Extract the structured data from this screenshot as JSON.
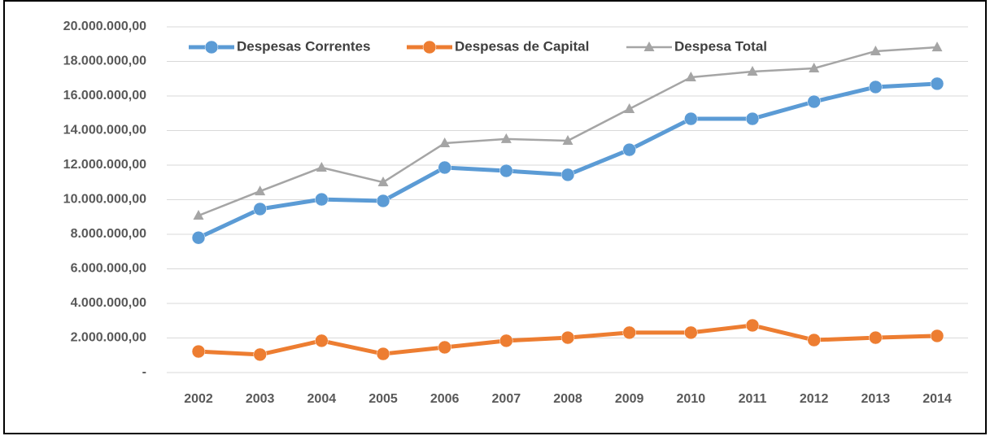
{
  "chart_data": {
    "type": "line",
    "categories": [
      "2002",
      "2003",
      "2004",
      "2005",
      "2006",
      "2007",
      "2008",
      "2009",
      "2010",
      "2011",
      "2012",
      "2013",
      "2014"
    ],
    "series": [
      {
        "name": "Despesas Correntes",
        "color": "#5b9bd5",
        "marker": "circle",
        "values": [
          7800000,
          9460000,
          10020000,
          9930000,
          11860000,
          11670000,
          11440000,
          12890000,
          14680000,
          14680000,
          15670000,
          16520000,
          16710000
        ]
      },
      {
        "name": "Despesas de Capital",
        "color": "#ed7d31",
        "marker": "circle",
        "values": [
          1220000,
          1040000,
          1840000,
          1080000,
          1460000,
          1840000,
          2020000,
          2310000,
          2310000,
          2730000,
          1880000,
          2020000,
          2120000
        ]
      },
      {
        "name": "Despesa Total",
        "color": "#a5a5a5",
        "marker": "triangle",
        "values": [
          9080000,
          10490000,
          11860000,
          11010000,
          13270000,
          13510000,
          13410000,
          15250000,
          17080000,
          17410000,
          17600000,
          18590000,
          18820000
        ]
      }
    ],
    "ylim": [
      0,
      20000000
    ],
    "yticks": [
      {
        "value": 0,
        "label": "-"
      },
      {
        "value": 2000000,
        "label": "2.000.000,00"
      },
      {
        "value": 4000000,
        "label": "4.000.000,00"
      },
      {
        "value": 6000000,
        "label": "6.000.000,00"
      },
      {
        "value": 8000000,
        "label": "8.000.000,00"
      },
      {
        "value": 10000000,
        "label": "10.000.000,00"
      },
      {
        "value": 12000000,
        "label": "12.000.000,00"
      },
      {
        "value": 14000000,
        "label": "14.000.000,00"
      },
      {
        "value": 16000000,
        "label": "16.000.000,00"
      },
      {
        "value": 18000000,
        "label": "18.000.000,00"
      },
      {
        "value": 20000000,
        "label": "20.000.000,00"
      }
    ],
    "grid": true,
    "legend": "top-left"
  }
}
